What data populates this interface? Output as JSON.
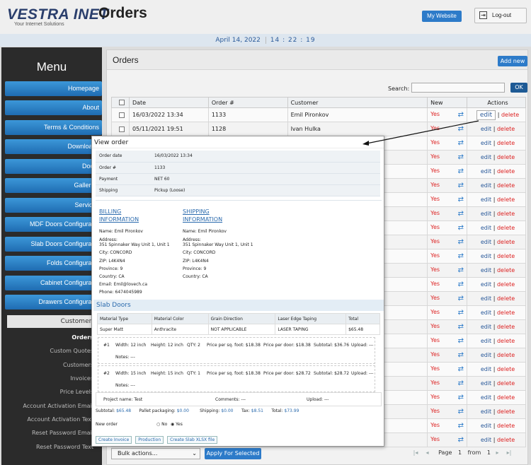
{
  "header": {
    "logo_text": "VESTRA INET",
    "logo_sub": "Your Internet Solutions",
    "page_title": "Orders",
    "my_website": "My Website",
    "logout": "Log-out",
    "date": "April 14, 2022",
    "clock": "14 : 22 : 19"
  },
  "sidebar": {
    "title": "Menu",
    "items": [
      {
        "label": "Homepage"
      },
      {
        "label": "About"
      },
      {
        "label": "Terms & Conditions"
      },
      {
        "label": "Downloads"
      },
      {
        "label": "Doors"
      },
      {
        "label": "Galleries"
      },
      {
        "label": "Services"
      },
      {
        "label": "MDF Doors Configurator"
      },
      {
        "label": "Slab Doors Configurator"
      },
      {
        "label": "Folds Configurator"
      },
      {
        "label": "Cabinet Configurator"
      },
      {
        "label": "Drawers Configurator"
      }
    ],
    "customers": "Customers",
    "subitems": [
      {
        "label": "Orders"
      },
      {
        "label": "Custom Quotes"
      },
      {
        "label": "Customers"
      },
      {
        "label": "Invoices"
      },
      {
        "label": "Price Levels"
      },
      {
        "label": "Account Activation Email"
      },
      {
        "label": "Account Activation Text"
      },
      {
        "label": "Reset Password Email"
      },
      {
        "label": "Reset Password Text"
      }
    ]
  },
  "main": {
    "title": "Orders",
    "add_new": "Add new",
    "search_label": "Search:",
    "ok": "OK",
    "columns": [
      "Date",
      "Order #",
      "Customer",
      "New",
      "Actions"
    ],
    "rows": [
      {
        "date": "16/03/2022 13:34",
        "order": "1133",
        "customer": "Emil Pironkov",
        "new": "Yes"
      },
      {
        "date": "05/11/2021 19:51",
        "order": "1128",
        "customer": "Ivan Hulka",
        "new": "Yes"
      }
    ],
    "yes": "Yes",
    "edit": "edit",
    "delete": "delete",
    "bulk": "Bulk actions...",
    "apply": "Apply For Selected",
    "page_label": "Page",
    "page": "1",
    "from_label": "from",
    "total_pages": "1"
  },
  "modal": {
    "title": "View order",
    "info": [
      {
        "k": "Order date",
        "v": "16/03/2022 13:34"
      },
      {
        "k": "Order #",
        "v": "1133"
      },
      {
        "k": "Payment",
        "v": "NET 60"
      },
      {
        "k": "Shipping",
        "v": "Pickup (Loose)"
      }
    ],
    "billing_h1": "BILLING",
    "billing_h2": "INFORMATION",
    "shipping_h1": "SHIPPING",
    "shipping_h2": "INFORMATION",
    "billing": {
      "name": "Name:   Emil Pironkov",
      "addr_label": "Address:",
      "addr": "351 Spinnaker Way Unit 1, Unit 1",
      "city": "City:   CONCORD",
      "zip": "ZIP:   L4K4N4",
      "province": "Province:   9",
      "country": "Country:   CA",
      "email": "Email:   Emil@lovech.ca",
      "phone": "Phone:   6474045989"
    },
    "shipping": {
      "name": "Name:   Emil Pironkov",
      "addr_label": "Address:",
      "addr": "351 Spinnaker Way Unit 1, Unit 1",
      "city": "City:   CONCORD",
      "zip": "ZIP:   L4K4N4",
      "province": "Province:   9",
      "country": "Country:   CA"
    },
    "slab_title": "Slab Doors",
    "slab_cols": [
      "Material Type",
      "Material Color",
      "Grain Direction",
      "Laser Edge Taping",
      "Total"
    ],
    "slab_row": [
      "Super Matt",
      "Anthracite",
      "NOT APPLICABLE",
      "LASER TAPING",
      "$65.48"
    ],
    "lines": [
      {
        "n": "#1",
        "width": "Width: 12 inch",
        "height": "Height: 12 inch",
        "qty": "QTY: 2",
        "psf": "Price per sq. foot: $18.38",
        "ppd": "Price per door: $18.38",
        "sub": "Subtotal: $36.76",
        "upload": "Upload: ---",
        "notes": "Notes: ---"
      },
      {
        "n": "#2",
        "width": "Width: 15 inch",
        "height": "Height: 15 inch",
        "qty": "QTY: 1",
        "psf": "Price per sq. foot: $18.38",
        "ppd": "Price per door: $28.72",
        "sub": "Subtotal: $28.72",
        "upload": "Upload: ---",
        "notes": "Notes: ---"
      }
    ],
    "project": "Project name: Test",
    "comments": "Comments: ---",
    "upload": "Upload: ---",
    "subtotal_l": "Subtotal:",
    "subtotal": "$65.48",
    "pallet_l": "Pallet packaging:",
    "pallet": "$0.00",
    "shipping_l": "Shipping:",
    "shipping_v": "$0.00",
    "tax_l": "Tax:",
    "tax": "$8.51",
    "total_l": "Total:",
    "total": "$73.99",
    "new_order": "New order",
    "no": "No",
    "yes": "Yes",
    "btn_invoice": "Create Invoice",
    "btn_production": "Production",
    "btn_xlsx": "Create Slab XLSX file"
  }
}
